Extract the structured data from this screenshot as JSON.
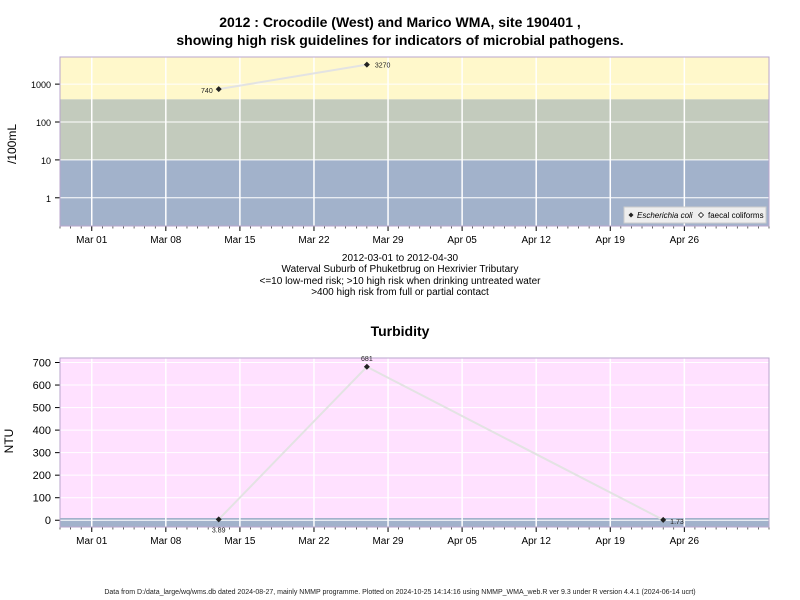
{
  "chart_data": [
    {
      "type": "scatter",
      "title": "2012 : Crocodile (West) and Marico WMA, site 190401 ,",
      "subtitle": "showing high risk guidelines for indicators of microbial pathogens.",
      "ylabel": "/100mL",
      "yscale": "log",
      "yticks": [
        1,
        10,
        100,
        1000
      ],
      "ytick_labels": [
        "1",
        "10",
        "100",
        "1000"
      ],
      "ylim": [
        0.18,
        5200
      ],
      "xlim": [
        "2012-02-27",
        "2012-05-04"
      ],
      "xticks": [
        "2012-03-01",
        "2012-03-08",
        "2012-03-15",
        "2012-03-22",
        "2012-03-29",
        "2012-04-05",
        "2012-04-12",
        "2012-04-19",
        "2012-04-26"
      ],
      "xtick_labels": [
        "Mar 01",
        "Mar 08",
        "Mar 15",
        "Mar 22",
        "Mar 29",
        "Apr 05",
        "Apr 12",
        "Apr 19",
        "Apr 26"
      ],
      "bands": [
        {
          "from": 0.18,
          "to": 10,
          "color": "#a2b2cb"
        },
        {
          "from": 10,
          "to": 400,
          "color": "#c3cbbd"
        },
        {
          "from": 400,
          "to": 5200,
          "color": "#fff8cb"
        }
      ],
      "series": [
        {
          "name": "Escherichia coli",
          "marker": "filled-diamond",
          "x": [
            "2012-03-13",
            "2012-03-27"
          ],
          "y": [
            740,
            3270
          ],
          "labels": [
            "740",
            "3270"
          ]
        }
      ],
      "legend": {
        "position": "bottom-right",
        "entries": [
          "Escherichia coli",
          "faecal coliforms"
        ]
      },
      "caption": [
        "2012-03-01 to 2012-04-30",
        "Waterval Suburb of Phuketbrug on Hexrivier Tributary",
        "<=10 low-med risk; >10 high risk when drinking untreated water",
        ">400 high risk from full or partial contact"
      ]
    },
    {
      "type": "line",
      "title": "Turbidity",
      "ylabel": "NTU",
      "ylim": [
        -30,
        720
      ],
      "yticks": [
        0,
        100,
        200,
        300,
        400,
        500,
        600,
        700
      ],
      "ytick_labels": [
        "0",
        "100",
        "200",
        "300",
        "400",
        "500",
        "600",
        "700"
      ],
      "xlim": [
        "2012-02-27",
        "2012-05-04"
      ],
      "xticks": [
        "2012-03-01",
        "2012-03-08",
        "2012-03-15",
        "2012-03-22",
        "2012-03-29",
        "2012-04-05",
        "2012-04-12",
        "2012-04-19",
        "2012-04-26"
      ],
      "xtick_labels": [
        "Mar 01",
        "Mar 08",
        "Mar 15",
        "Mar 22",
        "Mar 29",
        "Apr 05",
        "Apr 12",
        "Apr 19",
        "Apr 26"
      ],
      "bands": [
        {
          "from": -30,
          "to": 10,
          "color": "#a2b2cb"
        },
        {
          "from": 10,
          "to": 720,
          "color": "#ffe1ff"
        }
      ],
      "series": [
        {
          "x": [
            "2012-03-13",
            "2012-03-27",
            "2012-04-24"
          ],
          "y": [
            3.89,
            681,
            1.73
          ],
          "labels": [
            "3.89",
            "681",
            "1.73"
          ]
        }
      ]
    }
  ],
  "footer": "Data from D:/data_large/wq/wms.db dated 2024-08-27, mainly NMMP programme. Plotted on 2024-10-25 14:14:16 using NMMP_WMA_web.R ver 9.3 under R version 4.4.1 (2024-06-14 ucrt)",
  "colors": {
    "line": "#e3e3e3",
    "marker": "#222222",
    "grid": "#ffffff",
    "frame": "#b8a6cc"
  }
}
